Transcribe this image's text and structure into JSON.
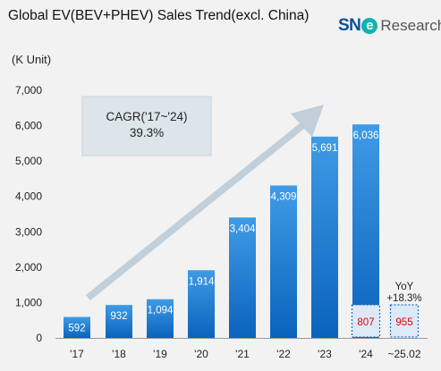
{
  "chart_data": {
    "type": "bar",
    "title": "Global EV(BEV+PHEV) Sales Trend(excl. China)",
    "unit_label": "(K Unit)",
    "categories": [
      "'17",
      "'18",
      "'19",
      "'20",
      "'21",
      "'22",
      "'23",
      "'24",
      "~25.02"
    ],
    "values": [
      592,
      932,
      1094,
      1914,
      3404,
      4309,
      5691,
      6036,
      null
    ],
    "value_labels": [
      "592",
      "932",
      "1,094",
      "1,914",
      "3,404",
      "4,309",
      "5,691",
      "6,036",
      ""
    ],
    "ytick_labels": [
      "0",
      "1,000",
      "2,000",
      "3,000",
      "4,000",
      "5,000",
      "6,000",
      "7,000"
    ],
    "ylim": [
      0,
      7000
    ],
    "grid": false,
    "ytd_series": {
      "categories": [
        "'24",
        "~25.02"
      ],
      "values": [
        807,
        955
      ],
      "labels": [
        "807",
        "955"
      ],
      "value_color": "#e8000d"
    },
    "annotations": {
      "cagr_label": "CAGR('17~'24)",
      "cagr_value": "39.3%",
      "yoy_label": "YoY",
      "yoy_value": "+18.3%"
    },
    "colors": {
      "bar_top": "#3f9be6",
      "bar_bottom": "#0a63bc",
      "ytd_fill": "#dde9f7",
      "arrow": "#b7c9d6",
      "cagr_box": "#dde5ea"
    }
  },
  "logo": {
    "brand": "SN",
    "mark": "e",
    "suffix": "Research"
  }
}
